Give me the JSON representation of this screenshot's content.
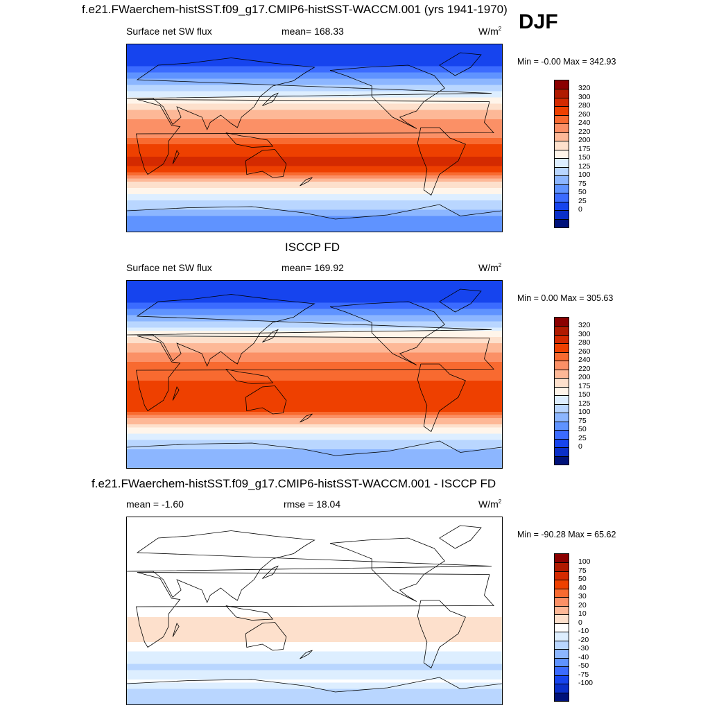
{
  "header": {
    "title": "f.e21.FWaerchem-histSST.f09_g17.CMIP6-histSST-WACCM.001 (yrs 1941-1970)",
    "season": "DJF"
  },
  "panels": [
    {
      "id": "model",
      "title": "",
      "left": "Surface net SW flux",
      "center": "mean= 168.33",
      "unit_base": "W/m",
      "unit_exp": "2",
      "minmax": "Min =  -0.00 Max = 342.93",
      "levels": [
        "320",
        "300",
        "280",
        "260",
        "240",
        "220",
        "200",
        "175",
        "150",
        "125",
        "100",
        "75",
        "50",
        "25",
        "0"
      ],
      "colors": [
        "#8b0000",
        "#b01a00",
        "#d42a00",
        "#ee4000",
        "#f86a30",
        "#fb9066",
        "#fdb897",
        "#fde0cc",
        "#fff5ea",
        "#ddeeff",
        "#b9d6ff",
        "#8cb6ff",
        "#5f93ff",
        "#3b6bff",
        "#1644ee",
        "#0a2fc9",
        "#00127a"
      ],
      "field": [
        {
          "lat": 90,
          "v": 5
        },
        {
          "lat": 75,
          "v": 10
        },
        {
          "lat": 65,
          "v": 35
        },
        {
          "lat": 55,
          "v": 80
        },
        {
          "lat": 45,
          "v": 125
        },
        {
          "lat": 35,
          "v": 170
        },
        {
          "lat": 25,
          "v": 210
        },
        {
          "lat": 12,
          "v": 230
        },
        {
          "lat": 0,
          "v": 235
        },
        {
          "lat": -12,
          "v": 275
        },
        {
          "lat": -25,
          "v": 285
        },
        {
          "lat": -35,
          "v": 255
        },
        {
          "lat": -45,
          "v": 190
        },
        {
          "lat": -55,
          "v": 140
        },
        {
          "lat": -68,
          "v": 105
        },
        {
          "lat": -80,
          "v": 55
        },
        {
          "lat": -90,
          "v": 50
        }
      ]
    },
    {
      "id": "obs",
      "title": "ISCCP FD",
      "left": "Surface net SW flux",
      "center": "mean= 169.92",
      "unit_base": "W/m",
      "unit_exp": "2",
      "minmax": "Min =   0.00 Max = 305.63",
      "levels": [
        "320",
        "300",
        "280",
        "260",
        "240",
        "220",
        "200",
        "175",
        "150",
        "125",
        "100",
        "75",
        "50",
        "25",
        "0"
      ],
      "colors": [
        "#8b0000",
        "#b01a00",
        "#d42a00",
        "#ee4000",
        "#f86a30",
        "#fb9066",
        "#fdb897",
        "#fde0cc",
        "#fff5ea",
        "#ddeeff",
        "#b9d6ff",
        "#8cb6ff",
        "#5f93ff",
        "#3b6bff",
        "#1644ee",
        "#0a2fc9",
        "#00127a"
      ],
      "field": [
        {
          "lat": 90,
          "v": 5
        },
        {
          "lat": 75,
          "v": 12
        },
        {
          "lat": 65,
          "v": 40
        },
        {
          "lat": 55,
          "v": 85
        },
        {
          "lat": 45,
          "v": 130
        },
        {
          "lat": 35,
          "v": 175
        },
        {
          "lat": 25,
          "v": 215
        },
        {
          "lat": 12,
          "v": 240
        },
        {
          "lat": 0,
          "v": 245
        },
        {
          "lat": -12,
          "v": 270
        },
        {
          "lat": -25,
          "v": 280
        },
        {
          "lat": -35,
          "v": 260
        },
        {
          "lat": -45,
          "v": 210
        },
        {
          "lat": -55,
          "v": 160
        },
        {
          "lat": -68,
          "v": 110
        },
        {
          "lat": -80,
          "v": 80
        },
        {
          "lat": -90,
          "v": 75
        }
      ]
    },
    {
      "id": "diff",
      "title": "f.e21.FWaerchem-histSST.f09_g17.CMIP6-histSST-WACCM.001 - ISCCP FD",
      "left": "mean =  -1.60",
      "center": "rmse =  18.04",
      "unit_base": "W/m",
      "unit_exp": "2",
      "minmax": "Min = -90.28 Max =  65.62",
      "levels": [
        "100",
        "75",
        "50",
        "40",
        "30",
        "20",
        "10",
        "0",
        "-10",
        "-20",
        "-30",
        "-40",
        "-50",
        "-75",
        "-100"
      ],
      "colors": [
        "#8b0000",
        "#b01a00",
        "#d42a00",
        "#ee4000",
        "#f86a30",
        "#fb9066",
        "#fdb897",
        "#fde0cc",
        "#ffffff",
        "#ddeeff",
        "#b9d6ff",
        "#8cb6ff",
        "#5f93ff",
        "#3b6bff",
        "#1644ee",
        "#0a2fc9",
        "#00127a"
      ],
      "field": [
        {
          "lat": 90,
          "v": -3
        },
        {
          "lat": 75,
          "v": -3
        },
        {
          "lat": 65,
          "v": -6
        },
        {
          "lat": 55,
          "v": -8
        },
        {
          "lat": 45,
          "v": -5
        },
        {
          "lat": 35,
          "v": -4
        },
        {
          "lat": 25,
          "v": -4
        },
        {
          "lat": 12,
          "v": -8
        },
        {
          "lat": 0,
          "v": -5
        },
        {
          "lat": -12,
          "v": 5
        },
        {
          "lat": -25,
          "v": 8
        },
        {
          "lat": -35,
          "v": -6
        },
        {
          "lat": -45,
          "v": -18
        },
        {
          "lat": -55,
          "v": -22
        },
        {
          "lat": -68,
          "v": -8
        },
        {
          "lat": -80,
          "v": -25
        },
        {
          "lat": -90,
          "v": -20
        }
      ]
    }
  ]
}
